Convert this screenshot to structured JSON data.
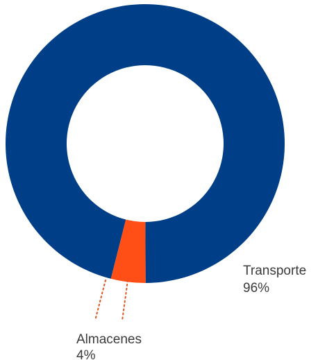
{
  "chart_data": {
    "type": "pie",
    "variant": "donut",
    "slices": [
      {
        "label": "Transporte",
        "value_label": "96%",
        "value": 96,
        "color": "#003f87"
      },
      {
        "label": "Almacenes",
        "value_label": "4%",
        "value": 4,
        "color": "#ff4f16"
      }
    ],
    "leader_line_color": "#e0531e"
  }
}
